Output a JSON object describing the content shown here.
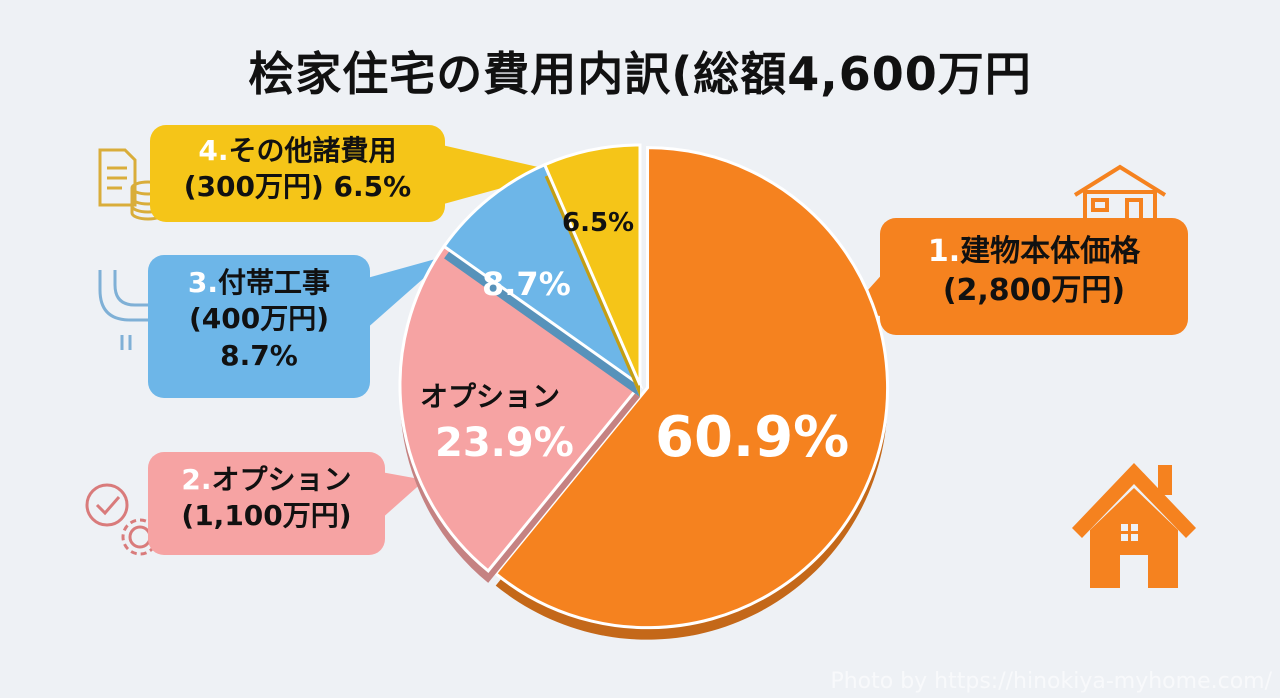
{
  "chart_data": {
    "type": "pie",
    "title": "桧家住宅の費用内訳(総額4,600万円",
    "slices": [
      {
        "index": "1.",
        "label": "建物本体価格",
        "amount": "(2,800万円)",
        "value": 60.9,
        "value_label": "60.9%",
        "color": "#f5821f"
      },
      {
        "index": "2.",
        "label": "オプション",
        "amount": "(1,100万円)",
        "value": 23.9,
        "value_label": "23.9%",
        "inner_label": "オプション",
        "color": "#f6a3a3"
      },
      {
        "index": "3.",
        "label": "付帯工事",
        "amount": "(400万円)",
        "value": 8.7,
        "value_label": "8.7%",
        "color": "#6db6e8"
      },
      {
        "index": "4.",
        "label": "その他諸費用",
        "amount": "(300万円) 6.5%",
        "value": 6.5,
        "value_label": "6.5%",
        "color": "#f5c518"
      }
    ]
  },
  "icons": [
    "document-coins-icon",
    "pipes-icon",
    "check-gear-icon",
    "house-icon"
  ],
  "watermark": "Photo by https://hinokiya-myhome.com/"
}
